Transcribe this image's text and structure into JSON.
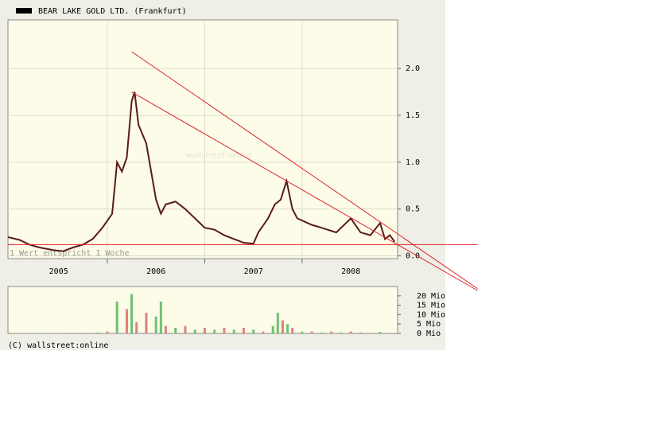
{
  "chart_data": [
    {
      "type": "line",
      "title": "BEAR LAKE GOLD LTD. (Frankfurt)",
      "watermark": "wallstreet online",
      "note": "1 Wert entspricht 1 Woche",
      "xlim": [
        2004.98,
        2008.98
      ],
      "ylim": [
        -0.03,
        2.52
      ],
      "xticks": [
        {
          "value": 2005.5,
          "label": "2005"
        },
        {
          "value": 2006.5,
          "label": "2006"
        },
        {
          "value": 2007.5,
          "label": "2007"
        },
        {
          "value": 2008.5,
          "label": "2008"
        }
      ],
      "xgrid": [
        2006,
        2007,
        2008
      ],
      "yticks": [
        {
          "value": 0,
          "label": "0.0"
        },
        {
          "value": 0.5,
          "label": "0.5"
        },
        {
          "value": 1,
          "label": "1.0"
        },
        {
          "value": 1.5,
          "label": "1.5"
        },
        {
          "value": 2,
          "label": "2.0"
        }
      ],
      "grid": true,
      "series": [
        {
          "color": "#5a1a1a",
          "x": [
            2004.98,
            2005.1,
            2005.2,
            2005.3,
            2005.45,
            2005.55,
            2005.65,
            2005.75,
            2005.85,
            2005.95,
            2006.05,
            2006.1,
            2006.15,
            2006.2,
            2006.25,
            2006.28,
            2006.32,
            2006.36,
            2006.4,
            2006.45,
            2006.5,
            2006.55,
            2006.6,
            2006.7,
            2006.8,
            2006.9,
            2007.0,
            2007.1,
            2007.2,
            2007.3,
            2007.4,
            2007.5,
            2007.55,
            2007.65,
            2007.72,
            2007.78,
            2007.84,
            2007.9,
            2007.95,
            2008.1,
            2008.2,
            2008.35,
            2008.45,
            2008.5,
            2008.6,
            2008.7,
            2008.8,
            2008.85,
            2008.9,
            2008.95
          ],
          "values": [
            0.2,
            0.17,
            0.12,
            0.09,
            0.06,
            0.05,
            0.09,
            0.12,
            0.18,
            0.3,
            0.45,
            1.0,
            0.9,
            1.05,
            1.65,
            1.75,
            1.4,
            1.3,
            1.2,
            0.9,
            0.6,
            0.45,
            0.55,
            0.58,
            0.5,
            0.4,
            0.3,
            0.28,
            0.22,
            0.18,
            0.14,
            0.13,
            0.25,
            0.4,
            0.55,
            0.6,
            0.8,
            0.5,
            0.4,
            0.33,
            0.3,
            0.25,
            0.35,
            0.4,
            0.25,
            0.22,
            0.35,
            0.18,
            0.22,
            0.15
          ]
        }
      ],
      "trendlines": [
        {
          "color": "#dd2222",
          "x": [
            2006.25,
            2009.8
          ],
          "y": [
            2.18,
            -0.35
          ]
        },
        {
          "color": "#dd2222",
          "x": [
            2006.25,
            2009.8
          ],
          "y": [
            1.75,
            -0.37
          ]
        },
        {
          "color": "#dd2222",
          "x": [
            2004.98,
            2009.8
          ],
          "y": [
            0.12,
            0.12
          ]
        }
      ]
    },
    {
      "type": "bar",
      "xlim": [
        2004.98,
        2008.98
      ],
      "ylim": [
        0,
        25
      ],
      "yticks": [
        {
          "value": 0,
          "label": "0 Mio"
        },
        {
          "value": 5,
          "label": "5 Mio"
        },
        {
          "value": 10,
          "label": "10 Mio"
        },
        {
          "value": 15,
          "label": "15 Mio"
        },
        {
          "value": 20,
          "label": "20 Mio"
        }
      ],
      "x": [
        2005.0,
        2005.1,
        2005.2,
        2005.3,
        2005.4,
        2005.5,
        2005.6,
        2005.7,
        2005.8,
        2005.9,
        2006.0,
        2006.1,
        2006.2,
        2006.25,
        2006.3,
        2006.4,
        2006.5,
        2006.55,
        2006.6,
        2006.7,
        2006.8,
        2006.9,
        2007.0,
        2007.1,
        2007.2,
        2007.3,
        2007.4,
        2007.5,
        2007.6,
        2007.7,
        2007.75,
        2007.8,
        2007.85,
        2007.9,
        2008.0,
        2008.1,
        2008.2,
        2008.3,
        2008.4,
        2008.5,
        2008.6,
        2008.7,
        2008.8,
        2008.9
      ],
      "values": [
        0.3,
        0.2,
        0.2,
        0.3,
        0.2,
        0.2,
        0.3,
        0.3,
        0.4,
        0.5,
        1,
        17,
        13,
        21,
        6,
        11,
        9,
        17,
        4,
        3,
        4,
        2,
        3,
        2,
        3,
        2,
        3,
        2,
        1,
        4,
        11,
        7,
        5,
        3,
        1,
        1,
        0.5,
        1,
        0.5,
        1,
        0.5,
        0.3,
        0.8,
        0.3
      ],
      "colors": [
        "#e08080",
        "#70c070",
        "#e08080",
        "#70c070",
        "#e08080",
        "#70c070",
        "#e08080",
        "#70c070",
        "#e08080",
        "#70c070",
        "#e08080",
        "#70c070",
        "#e08080",
        "#70c070",
        "#e08080",
        "#e08080",
        "#70c070",
        "#70c070",
        "#e08080",
        "#70c070",
        "#e08080",
        "#70c070",
        "#e08080",
        "#70c070",
        "#e08080",
        "#70c070",
        "#e08080",
        "#70c070",
        "#e08080",
        "#70c070",
        "#70c070",
        "#e08080",
        "#70c070",
        "#e08080",
        "#70c070",
        "#e08080",
        "#70c070",
        "#e08080",
        "#70c070",
        "#e08080",
        "#70c070",
        "#e08080",
        "#70c070",
        "#e08080"
      ]
    }
  ],
  "footer": "(C) wallstreet:online"
}
